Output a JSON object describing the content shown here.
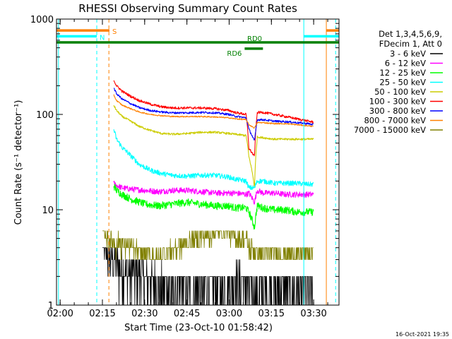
{
  "chart_data": {
    "type": "line",
    "title": "RHESSI Observing Summary Count Rates",
    "xlabel": "Start Time (23-Oct-10 01:58:42)",
    "ylabel": "Count Rate (s⁻¹ detector⁻¹)",
    "y_scale": "log",
    "ylim": [
      1,
      1000
    ],
    "xlim_minutes_after_0200": [
      -1.3,
      99
    ],
    "x_ticks": [
      "02:00",
      "02:15",
      "02:30",
      "02:45",
      "03:00",
      "03:15",
      "03:30"
    ],
    "y_ticks": [
      "1",
      "10",
      "100",
      "1000"
    ],
    "legend_header": [
      "Det 1,3,4,5,6,9,",
      "FDecim 1, Att 0"
    ],
    "legend_position": "right",
    "series": [
      {
        "name": "3 - 6 keV",
        "color": "#000000",
        "x_min": [
          15,
          16,
          17,
          19,
          22,
          25,
          30,
          35,
          40,
          45,
          50,
          55,
          60,
          62,
          66,
          68,
          72,
          76,
          80,
          84,
          88,
          90
        ],
        "y": [
          6,
          4.5,
          3.5,
          3,
          2.5,
          2.2,
          2,
          1.7,
          1.5,
          1.5,
          1.5,
          1.6,
          1.7,
          1.8,
          1.6,
          1.5,
          1.5,
          1.5,
          1.5,
          1.4,
          1.4,
          1.4
        ]
      },
      {
        "name": "6 - 12 keV",
        "color": "#ff00ff",
        "x_min": [
          19,
          20,
          22,
          25,
          30,
          35,
          40,
          45,
          50,
          55,
          60,
          62,
          66,
          67,
          69,
          70,
          72,
          76,
          80,
          84,
          88,
          90
        ],
        "y": [
          19,
          18,
          17,
          16.5,
          16,
          15.5,
          16,
          16,
          15.5,
          15,
          15,
          15,
          14.5,
          15,
          12,
          16,
          15,
          15,
          14.5,
          14.5,
          14.5,
          14.5
        ]
      },
      {
        "name": "12 - 25 keV",
        "color": "#00ff00",
        "x_min": [
          19,
          20,
          22,
          25,
          30,
          35,
          40,
          45,
          50,
          55,
          60,
          62,
          66,
          67,
          69,
          70,
          72,
          76,
          80,
          84,
          88,
          90
        ],
        "y": [
          18,
          16,
          14.5,
          13,
          11.5,
          11,
          11.5,
          12,
          11.5,
          11,
          11,
          10.5,
          10.5,
          9.5,
          6.5,
          11,
          10.5,
          10,
          10,
          9.5,
          9.5,
          9.5
        ]
      },
      {
        "name": "25 - 50 keV",
        "color": "#00ffff",
        "x_min": [
          19,
          20,
          22,
          25,
          28,
          32,
          36,
          40,
          45,
          50,
          55,
          60,
          62,
          66,
          67,
          69,
          70,
          72,
          76,
          80,
          84,
          88,
          90
        ],
        "y": [
          70,
          55,
          45,
          37,
          30,
          26,
          24,
          23,
          22.5,
          23,
          23,
          22,
          21,
          20,
          17,
          17,
          20,
          20,
          19,
          19,
          19,
          18.5,
          18.5
        ]
      },
      {
        "name": "50 - 100 keV",
        "color": "#cccc00",
        "x_min": [
          19,
          20,
          22,
          25,
          28,
          32,
          36,
          40,
          45,
          50,
          55,
          60,
          62,
          66,
          67,
          69,
          70,
          72,
          76,
          80,
          84,
          88,
          90
        ],
        "y": [
          125,
          110,
          95,
          85,
          75,
          68,
          63,
          62,
          63,
          65,
          65,
          63,
          62,
          60,
          36,
          17,
          58,
          57,
          55,
          55,
          55,
          55,
          55
        ]
      },
      {
        "name": "100 - 300 keV",
        "color": "#ff0000",
        "x_min": [
          19,
          20,
          22,
          25,
          28,
          32,
          36,
          40,
          45,
          50,
          55,
          60,
          62,
          66,
          67,
          69,
          70,
          72,
          76,
          80,
          84,
          88,
          90
        ],
        "y": [
          230,
          200,
          175,
          155,
          140,
          128,
          120,
          117,
          117,
          117,
          115,
          110,
          105,
          100,
          44,
          36,
          105,
          105,
          100,
          95,
          90,
          85,
          83
        ]
      },
      {
        "name": "300 - 800 keV",
        "color": "#0000ff",
        "x_min": [
          19,
          20,
          22,
          25,
          28,
          32,
          36,
          40,
          45,
          50,
          55,
          60,
          62,
          66,
          67,
          69,
          70,
          72,
          76,
          80,
          84,
          88,
          90
        ],
        "y": [
          190,
          165,
          145,
          130,
          118,
          110,
          106,
          104,
          104,
          105,
          104,
          100,
          96,
          92,
          70,
          52,
          88,
          88,
          85,
          84,
          82,
          80,
          78
        ]
      },
      {
        "name": "800 - 7000 keV",
        "color": "#ff8000",
        "x_min": [
          19,
          20,
          22,
          25,
          28,
          32,
          36,
          40,
          45,
          50,
          55,
          60,
          62,
          66,
          67,
          69,
          70,
          72,
          76,
          80,
          84,
          88,
          90
        ],
        "y": [
          160,
          140,
          125,
          115,
          106,
          100,
          97,
          95,
          95,
          95,
          94,
          92,
          90,
          88,
          78,
          72,
          82,
          82,
          80,
          80,
          78,
          76,
          75
        ]
      },
      {
        "name": "7000 - 15000 keV",
        "color": "#808000",
        "x_min": [
          15,
          16,
          17,
          19,
          22,
          25,
          30,
          35,
          40,
          45,
          50,
          55,
          60,
          62,
          66,
          67,
          69,
          70,
          72,
          76,
          80,
          84,
          88,
          90
        ],
        "y": [
          8,
          6,
          5,
          4.5,
          4.5,
          4,
          3.5,
          3,
          4,
          4.5,
          5,
          6,
          6,
          5,
          5,
          4,
          4,
          3.5,
          3.5,
          3.5,
          3.5,
          3.5,
          3.5,
          3.5
        ]
      }
    ],
    "flag_bars": [
      {
        "label": "S",
        "color": "#ff8000",
        "x0_min": -1.3,
        "x1_min": 17.5,
        "y": 760
      },
      {
        "label": "N",
        "color": "#00ffff",
        "x0_min": -1.3,
        "x1_min": 13.0,
        "y": 660
      },
      {
        "label": "RD0",
        "color": "#008000",
        "x0_min": -1.3,
        "x1_min": 99,
        "y": 570
      },
      {
        "label": "RD6",
        "color": "#008000",
        "x0_min": 65.5,
        "x1_min": 72.0,
        "y": 490
      }
    ],
    "right_flag_bars": [
      {
        "color": "#ff8000",
        "x0_min": 94.5,
        "x1_min": 99,
        "y": 760
      },
      {
        "color": "#00ffff",
        "x0_min": 86.5,
        "x1_min": 99,
        "y": 660
      }
    ],
    "vlines": [
      {
        "x_min": -0.6,
        "color": "#00ffff",
        "style": "solid"
      },
      {
        "x_min": 13.0,
        "color": "#00ffff",
        "style": "dashed"
      },
      {
        "x_min": 17.3,
        "color": "#ff8000",
        "style": "dashed"
      },
      {
        "x_min": 86.5,
        "color": "#00ffff",
        "style": "solid"
      },
      {
        "x_min": 94.5,
        "color": "#ff8000",
        "style": "solid"
      },
      {
        "x_min": 97.8,
        "color": "#00ffff",
        "style": "dashed"
      }
    ],
    "timestamp": "16-Oct-2021 19:35"
  }
}
